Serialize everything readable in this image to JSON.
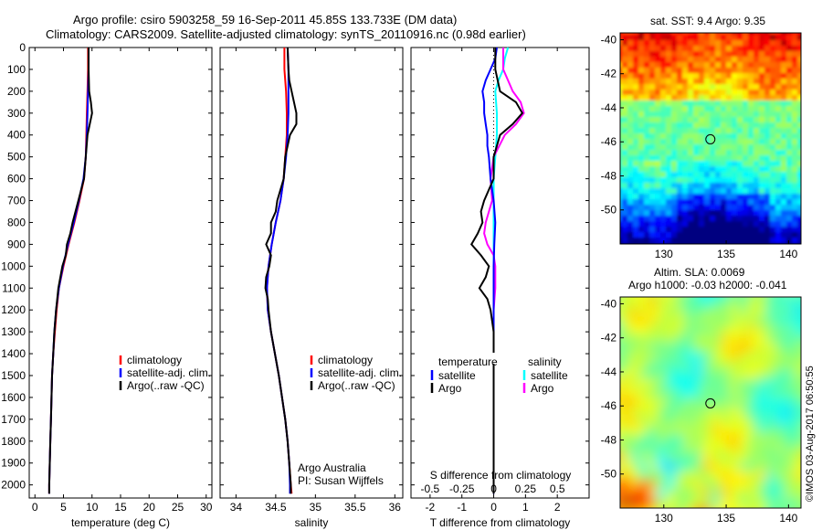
{
  "title_line1": "Argo profile: csiro 5903258_59 16-Sep-2011 45.85S 133.733E (DM data)",
  "title_line2": "Climatology: CARS2009. Satellite-adjusted climatology: synTS_20110916.nc (0.98d earlier)",
  "credit": "©IMOS 03-Aug-2017 06:50:55",
  "colors": {
    "climatology": "#ff0000",
    "satellite": "#0000ff",
    "argo": "#000000",
    "sal_satellite": "#00ffff",
    "sal_argo": "#ff00ff"
  },
  "chart_data": [
    {
      "type": "line",
      "xlabel": "temperature (deg C)",
      "xlim": [
        -1,
        31
      ],
      "ylim": [
        2060,
        0
      ],
      "x_ticks": [
        0,
        5,
        10,
        15,
        20,
        25,
        30
      ],
      "y_ticks": [
        0,
        100,
        200,
        300,
        400,
        500,
        600,
        700,
        800,
        900,
        1000,
        1100,
        1200,
        1300,
        1400,
        1500,
        1600,
        1700,
        1800,
        1900,
        2000
      ],
      "legend": [
        "climatology",
        "satellite-adj. clim.",
        "Argo(..raw -QC)"
      ],
      "series": [
        {
          "name": "climatology",
          "depth": [
            0,
            100,
            200,
            300,
            400,
            500,
            600,
            700,
            800,
            900,
            1000,
            1100,
            1200,
            1300,
            1400,
            1500,
            1600,
            1700,
            1800,
            1900,
            2000,
            2040
          ],
          "values": [
            9.3,
            9.3,
            9.2,
            9.1,
            9.0,
            8.9,
            8.6,
            7.8,
            6.9,
            5.9,
            5.0,
            4.2,
            3.8,
            3.5,
            3.2,
            3.0,
            2.9,
            2.8,
            2.7,
            2.6,
            2.5,
            2.5
          ]
        },
        {
          "name": "satellite-adj. clim.",
          "depth": [
            0,
            100,
            200,
            300,
            400,
            500,
            600,
            700,
            800,
            900,
            1000,
            1100,
            1200,
            1300,
            1400,
            1500,
            1600,
            1700,
            1800,
            1900,
            2000,
            2040
          ],
          "values": [
            9.4,
            9.4,
            9.3,
            9.2,
            9.1,
            8.9,
            8.5,
            7.7,
            6.8,
            5.8,
            4.9,
            4.2,
            3.7,
            3.4,
            3.2,
            3.0,
            2.9,
            2.8,
            2.7,
            2.6,
            2.5,
            2.5
          ]
        },
        {
          "name": "Argo(..raw -QC)",
          "depth": [
            0,
            100,
            200,
            250,
            300,
            350,
            400,
            500,
            600,
            700,
            800,
            850,
            900,
            950,
            1000,
            1100,
            1200,
            1300,
            1400,
            1500,
            1600,
            1700,
            1800,
            1900,
            2000,
            2040
          ],
          "values": [
            9.4,
            9.4,
            9.5,
            9.8,
            10.0,
            9.6,
            9.2,
            8.9,
            8.6,
            7.6,
            6.6,
            6.2,
            5.6,
            5.4,
            4.8,
            4.1,
            3.7,
            3.4,
            3.2,
            3.0,
            2.9,
            2.8,
            2.7,
            2.6,
            2.5,
            2.5
          ]
        }
      ]
    },
    {
      "type": "line",
      "xlabel": "salinity",
      "xlim": [
        33.8,
        36.1
      ],
      "ylim": [
        2060,
        0
      ],
      "x_ticks": [
        34,
        34.5,
        35,
        35.5,
        36
      ],
      "legend": [
        "climatology",
        "satellite-adj. clim.",
        "Argo(..raw -QC)"
      ],
      "annotation_line1": "Argo Australia",
      "annotation_line2": "PI: Susan Wijffels",
      "series": [
        {
          "name": "climatology",
          "depth": [
            0,
            100,
            200,
            300,
            400,
            500,
            600,
            700,
            800,
            900,
            1000,
            1100,
            1200,
            1300,
            1400,
            1500,
            1600,
            1700,
            1800,
            1900,
            2000,
            2040
          ],
          "values": [
            34.61,
            34.61,
            34.63,
            34.64,
            34.64,
            34.62,
            34.6,
            34.56,
            34.5,
            34.45,
            34.41,
            34.39,
            34.4,
            34.44,
            34.49,
            34.54,
            34.58,
            34.62,
            34.65,
            34.67,
            34.69,
            34.7
          ]
        },
        {
          "name": "satellite-adj. clim.",
          "depth": [
            0,
            100,
            200,
            300,
            400,
            500,
            600,
            700,
            800,
            900,
            1000,
            1100,
            1200,
            1300,
            1400,
            1500,
            1600,
            1700,
            1800,
            1900,
            2000,
            2040
          ],
          "values": [
            34.65,
            34.66,
            34.66,
            34.66,
            34.65,
            34.63,
            34.6,
            34.56,
            34.5,
            34.45,
            34.41,
            34.39,
            34.4,
            34.44,
            34.49,
            34.54,
            34.58,
            34.62,
            34.65,
            34.67,
            34.68,
            34.68
          ]
        },
        {
          "name": "Argo(..raw -QC)",
          "depth": [
            0,
            100,
            150,
            200,
            250,
            300,
            350,
            400,
            450,
            500,
            600,
            700,
            750,
            800,
            850,
            900,
            950,
            1000,
            1050,
            1100,
            1150,
            1200,
            1300,
            1400,
            1500,
            1600,
            1700,
            1800,
            1900,
            2000,
            2040
          ],
          "values": [
            34.65,
            34.66,
            34.67,
            34.7,
            34.73,
            34.76,
            34.76,
            34.68,
            34.65,
            34.62,
            34.6,
            34.52,
            34.5,
            34.44,
            34.44,
            34.38,
            34.44,
            34.42,
            34.38,
            34.37,
            34.4,
            34.41,
            34.44,
            34.49,
            34.54,
            34.58,
            34.62,
            34.65,
            34.67,
            34.69,
            34.69
          ]
        }
      ]
    },
    {
      "type": "line",
      "xlabel": "T difference from climatology",
      "xlabel_top": "S difference from climatology",
      "xlim": [
        -2.6,
        3.0
      ],
      "ylim": [
        2060,
        0
      ],
      "x_ticks": [
        -2,
        -1,
        0,
        1,
        2
      ],
      "x_ticks_top_labels": [
        "-0.5",
        "-0.25",
        "0",
        "0.25",
        "0.5"
      ],
      "x_ticks_top_positions": [
        -2,
        -1,
        0,
        1,
        2
      ],
      "legend_temperature_title": "temperature",
      "legend_salinity_title": "salinity",
      "legend_satellite": "satellite",
      "legend_argo": "Argo",
      "series": [
        {
          "name": "temperature satellite",
          "depth": [
            0,
            50,
            100,
            150,
            200,
            250,
            300,
            350,
            400,
            450,
            500,
            600,
            700,
            800,
            900,
            1000,
            1100,
            1200,
            1300,
            1400,
            1500,
            1600,
            1700,
            1800,
            1900,
            2000,
            2040
          ],
          "values": [
            0.1,
            0.05,
            -0.1,
            -0.25,
            -0.35,
            -0.3,
            -0.3,
            -0.25,
            -0.2,
            -0.2,
            -0.15,
            -0.1,
            0.0,
            0.05,
            0.02,
            0.0,
            0.0,
            0.0,
            0.0,
            0.0,
            0.0,
            0.0,
            0.0,
            0.0,
            0.0,
            0.0,
            0.0
          ]
        },
        {
          "name": "temperature Argo",
          "depth": [
            0,
            100,
            200,
            250,
            300,
            350,
            400,
            500,
            600,
            700,
            750,
            800,
            850,
            900,
            950,
            1000,
            1050,
            1100,
            1150,
            1200,
            1300,
            1400,
            1500,
            1600,
            1700,
            1800,
            1900,
            2000,
            2040
          ],
          "values": [
            0.05,
            0.05,
            0.2,
            0.7,
            0.9,
            0.6,
            0.2,
            0.0,
            0.0,
            -0.3,
            -0.4,
            -0.35,
            -0.5,
            -0.7,
            -0.4,
            -0.15,
            -0.25,
            -0.45,
            -0.2,
            -0.1,
            0.0,
            0.0,
            0.0,
            0.0,
            0.0,
            0.0,
            0.0,
            0.0,
            0.0
          ]
        },
        {
          "name": "salinity satellite",
          "depth": [
            0,
            50,
            100,
            150,
            200,
            300,
            400,
            500,
            600,
            700,
            800,
            900,
            1000,
            1100,
            1200,
            1300,
            1400,
            1500,
            1600,
            1700,
            1800,
            1900,
            2000,
            2040
          ],
          "values": [
            0.45,
            0.35,
            0.3,
            0.15,
            0.05,
            0.1,
            0.1,
            0.05,
            0.0,
            0.0,
            0.0,
            0.0,
            0.0,
            0.0,
            0.0,
            0.0,
            0.0,
            0.0,
            0.0,
            0.0,
            0.0,
            0.0,
            0.0,
            0.0
          ]
        },
        {
          "name": "salinity Argo",
          "depth": [
            0,
            100,
            200,
            250,
            300,
            350,
            400,
            500,
            600,
            700,
            800,
            850,
            900,
            950,
            1000,
            1100,
            1200,
            1300,
            1400,
            1500,
            1600,
            1700,
            1800,
            1900,
            2000,
            2040
          ],
          "values": [
            0.3,
            0.3,
            0.6,
            0.85,
            0.95,
            0.7,
            0.35,
            0.0,
            -0.1,
            -0.05,
            -0.25,
            -0.3,
            -0.2,
            0.0,
            0.05,
            0.05,
            0.0,
            0.0,
            0.0,
            0.0,
            0.0,
            0.0,
            0.0,
            0.0,
            0.0,
            0.0
          ]
        }
      ]
    },
    {
      "type": "heatmap",
      "title": "sat. SST: 9.4 Argo: 9.35",
      "xlim": [
        126.5,
        141
      ],
      "ylim": [
        -52,
        -39.6
      ],
      "x_ticks": [
        130,
        135,
        140
      ],
      "y_ticks": [
        -40,
        -42,
        -44,
        -46,
        -48,
        -50
      ],
      "marker": {
        "lon": 133.733,
        "lat": -45.85
      }
    },
    {
      "type": "heatmap",
      "title_line1": "Altim. SLA: 0.0069",
      "title_line2": "Argo h1000: -0.03 h2000: -0.041",
      "xlim": [
        126.5,
        141
      ],
      "ylim": [
        -52,
        -39.6
      ],
      "x_ticks": [
        130,
        135,
        140
      ],
      "y_ticks": [
        -40,
        -42,
        -44,
        -46,
        -48,
        -50
      ],
      "marker": {
        "lon": 133.733,
        "lat": -45.85
      }
    }
  ]
}
